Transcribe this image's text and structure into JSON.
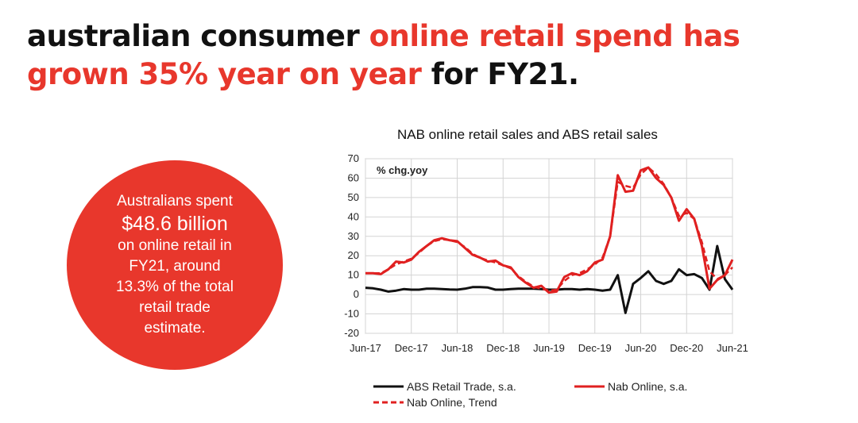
{
  "headline": {
    "line1_black": "australian consumer ",
    "line1_red": "online retail spend has",
    "line2_red": "grown 35% year on year",
    "line2_black": " for FY21."
  },
  "callout": {
    "lines": [
      "Australians spent",
      "$48.6 billion",
      "on online retail in",
      "FY21, around",
      "13.3% of the total",
      "retail trade",
      "estimate."
    ]
  },
  "colors": {
    "accent": "#e8372c",
    "abs": "#111111",
    "nab": "#e02020"
  },
  "chart_data": {
    "type": "line",
    "title": "NAB online retail sales and ABS retail sales",
    "annotation": "% chg.yoy",
    "ylim": [
      -20,
      70
    ],
    "yticks": [
      -20,
      -10,
      0,
      10,
      20,
      30,
      40,
      50,
      60,
      70
    ],
    "xticks": [
      "Jun-17",
      "Dec-17",
      "Jun-18",
      "Dec-18",
      "Jun-19",
      "Dec-19",
      "Jun-20",
      "Dec-20",
      "Jun-21"
    ],
    "xlim": [
      "2017-06",
      "2021-06"
    ],
    "grid": true,
    "legend_position": "bottom",
    "x": [
      "2017-06",
      "2017-07",
      "2017-08",
      "2017-09",
      "2017-10",
      "2017-11",
      "2017-12",
      "2018-01",
      "2018-02",
      "2018-03",
      "2018-04",
      "2018-05",
      "2018-06",
      "2018-07",
      "2018-08",
      "2018-09",
      "2018-10",
      "2018-11",
      "2018-12",
      "2019-01",
      "2019-02",
      "2019-03",
      "2019-04",
      "2019-05",
      "2019-06",
      "2019-07",
      "2019-08",
      "2019-09",
      "2019-10",
      "2019-11",
      "2019-12",
      "2020-01",
      "2020-02",
      "2020-03",
      "2020-04",
      "2020-05",
      "2020-06",
      "2020-07",
      "2020-08",
      "2020-09",
      "2020-10",
      "2020-11",
      "2020-12",
      "2021-01",
      "2021-02",
      "2021-03",
      "2021-04",
      "2021-05",
      "2021-06"
    ],
    "series": [
      {
        "name": "ABS Retail Trade, s.a.",
        "style": "solid",
        "color": "#111111",
        "values": [
          3.5,
          3.2,
          2.5,
          1.5,
          2,
          2.8,
          2.5,
          2.5,
          3,
          3,
          2.8,
          2.6,
          2.5,
          3,
          3.8,
          3.8,
          3.6,
          2.5,
          2.5,
          2.8,
          3,
          3,
          3,
          2.8,
          2.5,
          2.5,
          2.8,
          2.8,
          2.5,
          2.8,
          2.5,
          2,
          2.5,
          10,
          -9.5,
          5.5,
          8.5,
          12,
          7,
          5.5,
          7,
          13,
          10,
          10.5,
          8.5,
          2.5,
          25,
          8,
          2.5
        ]
      },
      {
        "name": "Nab Online, s.a.",
        "style": "solid",
        "color": "#e02020",
        "values": [
          11,
          11,
          10.5,
          13,
          17,
          16.5,
          18,
          22,
          25,
          28,
          29,
          28,
          27.5,
          24,
          20.5,
          19,
          17,
          17.5,
          15,
          14,
          9,
          6,
          3.5,
          4.5,
          1,
          1.5,
          9,
          11,
          10,
          12,
          16.5,
          18,
          30,
          61.5,
          53,
          53.5,
          64,
          65.5,
          60,
          56.5,
          50,
          38,
          44,
          39,
          25,
          3,
          7.5,
          10,
          18
        ]
      },
      {
        "name": "Nab Online, Trend",
        "style": "dashed",
        "color": "#e02020",
        "values": [
          11,
          11,
          11,
          13,
          15.5,
          17,
          18.5,
          21.5,
          25,
          27.5,
          28.5,
          28,
          27,
          24.5,
          21,
          19,
          17.5,
          16.5,
          15,
          13.5,
          9.5,
          6.5,
          4,
          3,
          2,
          2.5,
          7,
          10,
          11,
          13,
          15.5,
          19,
          30,
          58,
          56,
          55,
          62,
          65.5,
          62,
          57,
          50,
          40.5,
          42,
          39,
          27,
          12,
          8,
          10,
          14
        ]
      }
    ]
  }
}
